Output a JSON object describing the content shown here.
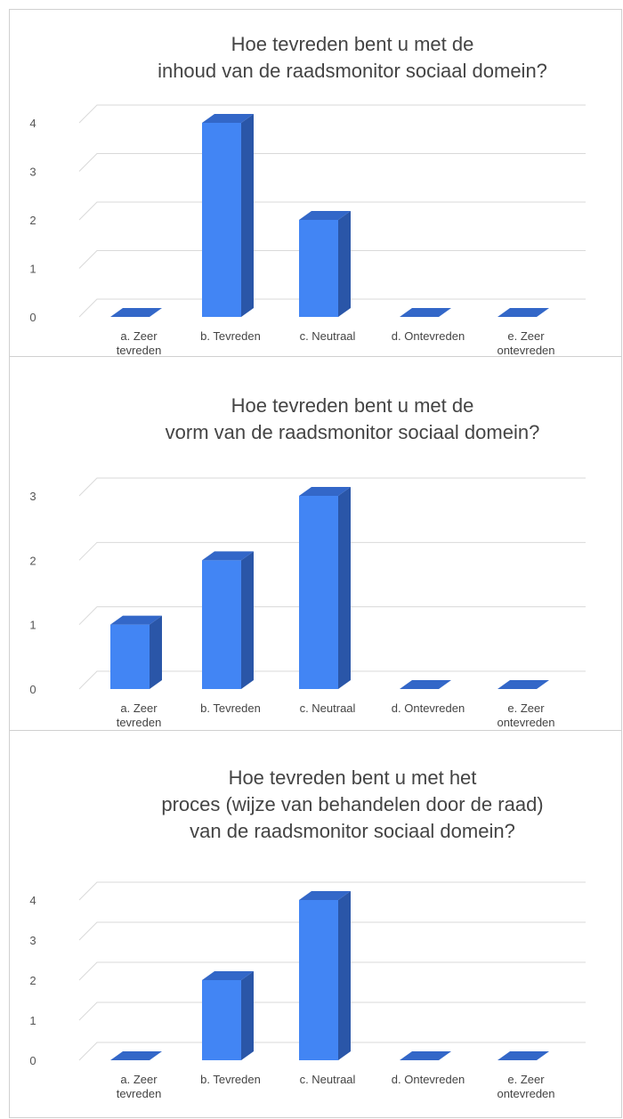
{
  "chart_data": [
    {
      "type": "bar3d",
      "title": [
        "Hoe tevreden bent u met de",
        "inhoud van de raadsmonitor sociaal domein?"
      ],
      "categories": [
        "a. Zeer tevreden",
        "b. Tevreden",
        "c. Neutraal",
        "d. Ontevreden",
        "e. Zeer ontevreden"
      ],
      "values": [
        0,
        4,
        2,
        0,
        0
      ],
      "color": "#4285f4",
      "ylim": [
        0,
        4
      ],
      "yticks": [
        0,
        1,
        2,
        3,
        4
      ],
      "grid": true
    },
    {
      "type": "bar3d",
      "title": [
        "Hoe tevreden bent u met de",
        "vorm van de raadsmonitor sociaal domein?"
      ],
      "categories": [
        "a. Zeer tevreden",
        "b. Tevreden",
        "c. Neutraal",
        "d. Ontevreden",
        "e. Zeer ontevreden"
      ],
      "values": [
        1,
        2,
        3,
        0,
        0
      ],
      "color": "#4285f4",
      "ylim": [
        0,
        3
      ],
      "yticks": [
        0,
        1,
        2,
        3
      ],
      "grid": true
    },
    {
      "type": "bar3d",
      "title": [
        "Hoe tevreden bent u met het",
        "proces (wijze van behandelen door de raad)",
        "van de raadsmonitor sociaal domein?"
      ],
      "categories": [
        "a. Zeer tevreden",
        "b. Tevreden",
        "c. Neutraal",
        "d. Ontevreden",
        "e. Zeer ontevreden"
      ],
      "values": [
        0,
        2,
        4,
        0,
        0
      ],
      "color": "#4285f4",
      "ylim": [
        0,
        4
      ],
      "yticks": [
        0,
        1,
        2,
        3,
        4
      ],
      "grid": true
    }
  ]
}
